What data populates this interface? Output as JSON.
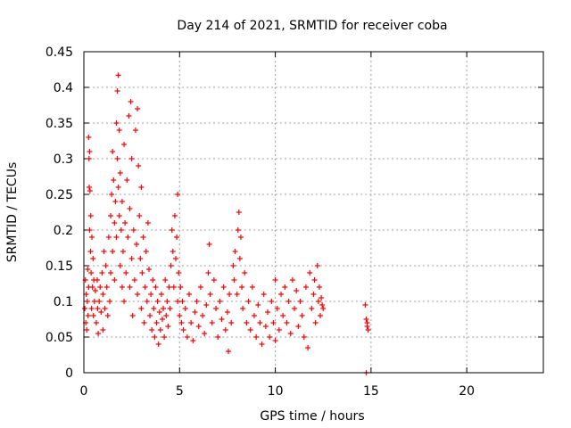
{
  "chart_data": {
    "type": "scatter",
    "title": "Day 214 of 2021, SRMTID for receiver coba",
    "xlabel": "GPS time / hours",
    "ylabel": "SRMTID / TECUs",
    "xlim": [
      0,
      24
    ],
    "ylim": [
      0,
      0.45
    ],
    "x_ticks": [
      0,
      5,
      10,
      15,
      20
    ],
    "x_tick_labels": [
      "0",
      "5",
      "10",
      "15",
      "20"
    ],
    "y_ticks": [
      0,
      0.05,
      0.1,
      0.15,
      0.2,
      0.25,
      0.3,
      0.35,
      0.4,
      0.45
    ],
    "y_tick_labels": [
      "0",
      "0.05",
      "0.1",
      "0.15",
      "0.2",
      "0.25",
      "0.3",
      "0.35",
      "0.4",
      "0.45"
    ],
    "grid": true,
    "marker": "+",
    "colors": {
      "series": "#ff0000",
      "grid": "#a0a0a0",
      "axis": "#000000"
    },
    "series": [
      {
        "name": "SRMTID",
        "points": [
          [
            0.05,
            0.09
          ],
          [
            0.08,
            0.13
          ],
          [
            0.1,
            0.07
          ],
          [
            0.12,
            0.11
          ],
          [
            0.15,
            0.06
          ],
          [
            0.18,
            0.1
          ],
          [
            0.2,
            0.145
          ],
          [
            0.22,
            0.08
          ],
          [
            0.25,
            0.12
          ],
          [
            0.25,
            0.33
          ],
          [
            0.27,
            0.3
          ],
          [
            0.28,
            0.26
          ],
          [
            0.3,
            0.31
          ],
          [
            0.3,
            0.2
          ],
          [
            0.32,
            0.255
          ],
          [
            0.35,
            0.17
          ],
          [
            0.36,
            0.22
          ],
          [
            0.38,
            0.14
          ],
          [
            0.4,
            0.09
          ],
          [
            0.42,
            0.19
          ],
          [
            0.45,
            0.12
          ],
          [
            0.48,
            0.16
          ],
          [
            0.5,
            0.08
          ],
          [
            0.52,
            0.13
          ],
          [
            0.55,
            0.1
          ],
          [
            0.6,
            0.115
          ],
          [
            0.65,
            0.07
          ],
          [
            0.7,
            0.13
          ],
          [
            0.72,
            0.09
          ],
          [
            0.75,
            0.055
          ],
          [
            0.8,
            0.1
          ],
          [
            0.85,
            0.12
          ],
          [
            0.9,
            0.085
          ],
          [
            0.95,
            0.14
          ],
          [
            1.0,
            0.06
          ],
          [
            1.0,
            0.11
          ],
          [
            1.05,
            0.17
          ],
          [
            1.1,
            0.09
          ],
          [
            1.15,
            0.15
          ],
          [
            1.2,
            0.12
          ],
          [
            1.25,
            0.08
          ],
          [
            1.3,
            0.19
          ],
          [
            1.35,
            0.1
          ],
          [
            1.4,
            0.22
          ],
          [
            1.4,
            0.14
          ],
          [
            1.45,
            0.25
          ],
          [
            1.5,
            0.31
          ],
          [
            1.5,
            0.17
          ],
          [
            1.55,
            0.27
          ],
          [
            1.6,
            0.21
          ],
          [
            1.6,
            0.13
          ],
          [
            1.65,
            0.24
          ],
          [
            1.7,
            0.35
          ],
          [
            1.7,
            0.19
          ],
          [
            1.75,
            0.3
          ],
          [
            1.75,
            0.395
          ],
          [
            1.8,
            0.417
          ],
          [
            1.8,
            0.26
          ],
          [
            1.85,
            0.22
          ],
          [
            1.85,
            0.34
          ],
          [
            1.9,
            0.15
          ],
          [
            1.9,
            0.28
          ],
          [
            1.95,
            0.2
          ],
          [
            2.0,
            0.12
          ],
          [
            2.0,
            0.24
          ],
          [
            2.05,
            0.17
          ],
          [
            2.1,
            0.32
          ],
          [
            2.1,
            0.1
          ],
          [
            2.15,
            0.21
          ],
          [
            2.2,
            0.14
          ],
          [
            2.25,
            0.27
          ],
          [
            2.3,
            0.19
          ],
          [
            2.35,
            0.36
          ],
          [
            2.4,
            0.12
          ],
          [
            2.4,
            0.23
          ],
          [
            2.45,
            0.38
          ],
          [
            2.5,
            0.16
          ],
          [
            2.5,
            0.3
          ],
          [
            2.55,
            0.08
          ],
          [
            2.6,
            0.2
          ],
          [
            2.65,
            0.13
          ],
          [
            2.7,
            0.34
          ],
          [
            2.75,
            0.18
          ],
          [
            2.8,
            0.37
          ],
          [
            2.8,
            0.11
          ],
          [
            2.85,
            0.29
          ],
          [
            2.9,
            0.22
          ],
          [
            2.95,
            0.16
          ],
          [
            3.0,
            0.09
          ],
          [
            3.0,
            0.26
          ],
          [
            3.05,
            0.14
          ],
          [
            3.1,
            0.19
          ],
          [
            3.15,
            0.07
          ],
          [
            3.2,
            0.12
          ],
          [
            3.25,
            0.17
          ],
          [
            3.3,
            0.1
          ],
          [
            3.35,
            0.21
          ],
          [
            3.4,
            0.145
          ],
          [
            3.45,
            0.08
          ],
          [
            3.5,
            0.11
          ],
          [
            3.55,
            0.06
          ],
          [
            3.6,
            0.13
          ],
          [
            3.65,
            0.09
          ],
          [
            3.7,
            0.05
          ],
          [
            3.75,
            0.12
          ],
          [
            3.8,
            0.07
          ],
          [
            3.85,
            0.1
          ],
          [
            3.9,
            0.04
          ],
          [
            3.95,
            0.085
          ],
          [
            4.0,
            0.06
          ],
          [
            4.05,
            0.11
          ],
          [
            4.1,
            0.075
          ],
          [
            4.15,
            0.09
          ],
          [
            4.2,
            0.05
          ],
          [
            4.25,
            0.13
          ],
          [
            4.3,
            0.08
          ],
          [
            4.35,
            0.1
          ],
          [
            4.4,
            0.065
          ],
          [
            4.45,
            0.12
          ],
          [
            4.5,
            0.09
          ],
          [
            4.55,
            0.15
          ],
          [
            4.6,
            0.2
          ],
          [
            4.65,
            0.17
          ],
          [
            4.7,
            0.12
          ],
          [
            4.75,
            0.22
          ],
          [
            4.8,
            0.16
          ],
          [
            4.85,
            0.19
          ],
          [
            4.9,
            0.25
          ],
          [
            4.9,
            0.1
          ],
          [
            4.95,
            0.14
          ],
          [
            5.0,
            0.08
          ],
          [
            5.05,
            0.12
          ],
          [
            5.1,
            0.07
          ],
          [
            5.15,
            0.1
          ],
          [
            5.2,
            0.06
          ],
          [
            5.3,
            0.09
          ],
          [
            5.4,
            0.05
          ],
          [
            5.5,
            0.11
          ],
          [
            5.6,
            0.07
          ],
          [
            5.7,
            0.045
          ],
          [
            5.8,
            0.085
          ],
          [
            5.9,
            0.1
          ],
          [
            6.0,
            0.065
          ],
          [
            6.1,
            0.12
          ],
          [
            6.2,
            0.08
          ],
          [
            6.3,
            0.055
          ],
          [
            6.4,
            0.095
          ],
          [
            6.5,
            0.14
          ],
          [
            6.55,
            0.18
          ],
          [
            6.6,
            0.11
          ],
          [
            6.7,
            0.07
          ],
          [
            6.8,
            0.13
          ],
          [
            6.9,
            0.09
          ],
          [
            7.0,
            0.05
          ],
          [
            7.1,
            0.1
          ],
          [
            7.2,
            0.075
          ],
          [
            7.3,
            0.12
          ],
          [
            7.4,
            0.06
          ],
          [
            7.5,
            0.085
          ],
          [
            7.55,
            0.03
          ],
          [
            7.6,
            0.11
          ],
          [
            7.7,
            0.07
          ],
          [
            7.8,
            0.15
          ],
          [
            7.85,
            0.13
          ],
          [
            7.9,
            0.17
          ],
          [
            8.0,
            0.11
          ],
          [
            8.05,
            0.2
          ],
          [
            8.1,
            0.225
          ],
          [
            8.15,
            0.16
          ],
          [
            8.2,
            0.19
          ],
          [
            8.25,
            0.12
          ],
          [
            8.3,
            0.09
          ],
          [
            8.4,
            0.14
          ],
          [
            8.5,
            0.07
          ],
          [
            8.6,
            0.1
          ],
          [
            8.7,
            0.06
          ],
          [
            8.8,
            0.12
          ],
          [
            8.9,
            0.08
          ],
          [
            9.0,
            0.05
          ],
          [
            9.1,
            0.095
          ],
          [
            9.2,
            0.07
          ],
          [
            9.3,
            0.04
          ],
          [
            9.4,
            0.11
          ],
          [
            9.5,
            0.065
          ],
          [
            9.6,
            0.085
          ],
          [
            9.7,
            0.05
          ],
          [
            9.8,
            0.1
          ],
          [
            9.9,
            0.07
          ],
          [
            10.0,
            0.13
          ],
          [
            10.0,
            0.045
          ],
          [
            10.1,
            0.09
          ],
          [
            10.2,
            0.06
          ],
          [
            10.3,
            0.11
          ],
          [
            10.4,
            0.08
          ],
          [
            10.5,
            0.12
          ],
          [
            10.6,
            0.07
          ],
          [
            10.7,
            0.1
          ],
          [
            10.8,
            0.055
          ],
          [
            10.9,
            0.13
          ],
          [
            11.0,
            0.09
          ],
          [
            11.1,
            0.115
          ],
          [
            11.2,
            0.065
          ],
          [
            11.3,
            0.1
          ],
          [
            11.4,
            0.08
          ],
          [
            11.5,
            0.05
          ],
          [
            11.6,
            0.12
          ],
          [
            11.7,
            0.035
          ],
          [
            11.8,
            0.14
          ],
          [
            11.9,
            0.09
          ],
          [
            12.0,
            0.11
          ],
          [
            12.05,
            0.13
          ],
          [
            12.1,
            0.07
          ],
          [
            12.2,
            0.15
          ],
          [
            12.25,
            0.1
          ],
          [
            12.3,
            0.12
          ],
          [
            12.35,
            0.08
          ],
          [
            12.4,
            0.105
          ],
          [
            12.45,
            0.095
          ],
          [
            12.5,
            0.09
          ],
          [
            14.7,
            0.095
          ],
          [
            14.75,
            0.075
          ],
          [
            14.8,
            0.065
          ],
          [
            14.85,
            0.06
          ],
          [
            14.8,
            0.07
          ],
          [
            14.75,
            0.0
          ]
        ]
      }
    ]
  }
}
